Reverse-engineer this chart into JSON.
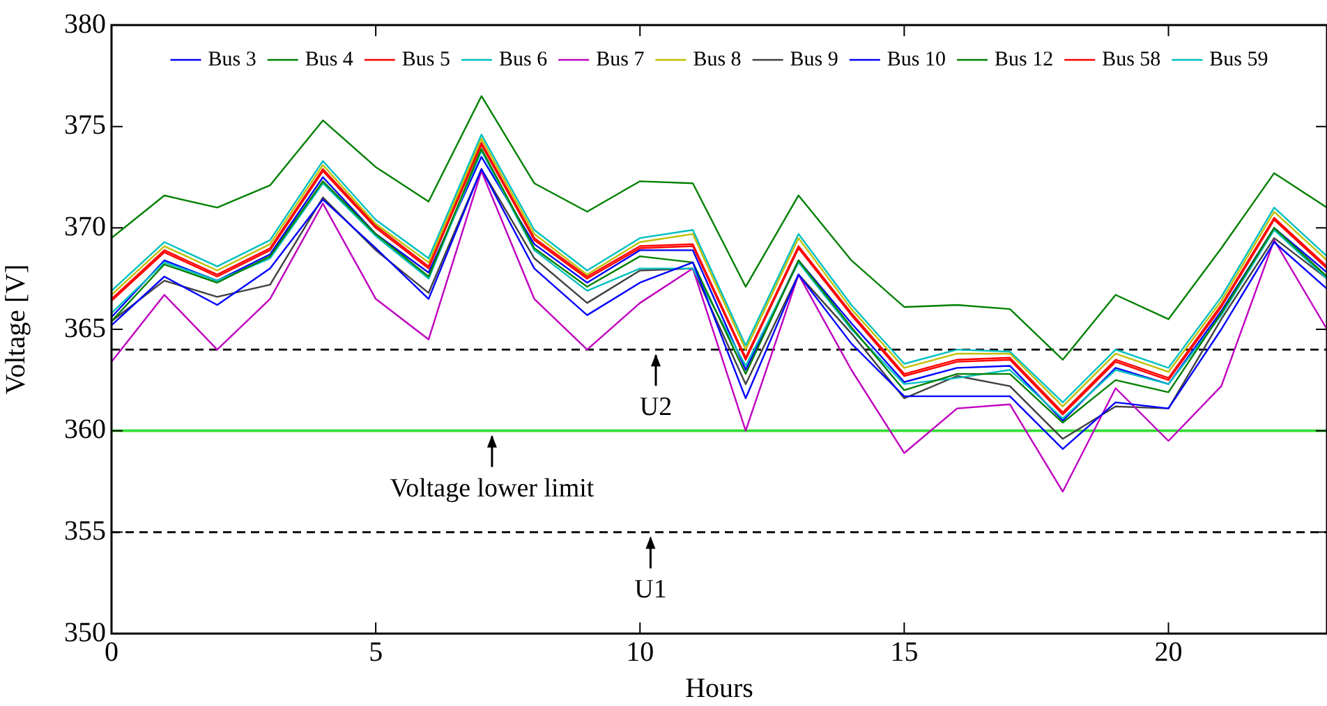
{
  "chart_data": {
    "type": "line",
    "xlabel": "Hours",
    "ylabel": "Voltage [V]",
    "x": [
      0,
      1,
      2,
      3,
      4,
      5,
      6,
      7,
      8,
      9,
      10,
      11,
      12,
      13,
      14,
      15,
      16,
      17,
      18,
      19,
      20,
      21,
      22,
      23
    ],
    "xlim": [
      0,
      23
    ],
    "xticks": [
      0,
      5,
      10,
      15,
      20
    ],
    "ylim": [
      350,
      380
    ],
    "yticks": [
      350,
      355,
      360,
      365,
      370,
      375,
      380
    ],
    "grid": false,
    "legend": "top",
    "marker": "none",
    "line_style": "solid",
    "series": [
      {
        "name": "Bus 3",
        "color": "#0000ff",
        "values": [
          365.2,
          367.6,
          366.2,
          368.0,
          371.4,
          369.0,
          366.5,
          372.9,
          368.0,
          365.7,
          367.3,
          368.3,
          361.6,
          367.7,
          364.3,
          361.7,
          361.7,
          361.7,
          359.1,
          361.4,
          361.1,
          365.0,
          369.3,
          367.0
        ]
      },
      {
        "name": "Bus 4",
        "color": "#008000",
        "values": [
          365.4,
          368.2,
          367.3,
          368.6,
          372.3,
          369.7,
          367.6,
          373.9,
          369.0,
          367.1,
          368.6,
          368.3,
          362.8,
          368.4,
          365.1,
          362.0,
          362.8,
          362.8,
          360.4,
          362.5,
          361.9,
          365.8,
          370.0,
          367.6
        ]
      },
      {
        "name": "Bus 5",
        "color": "#ff0000",
        "values": [
          366.4,
          368.8,
          367.6,
          368.9,
          372.8,
          370.0,
          368.0,
          374.1,
          369.4,
          367.5,
          369.0,
          369.1,
          363.5,
          369.0,
          365.7,
          362.7,
          363.4,
          363.5,
          360.8,
          363.4,
          362.5,
          366.1,
          370.4,
          368.0
        ]
      },
      {
        "name": "Bus 6",
        "color": "#00bfbf",
        "values": [
          365.8,
          368.3,
          367.4,
          368.5,
          372.2,
          369.6,
          367.5,
          373.8,
          368.9,
          366.9,
          368.0,
          368.0,
          363.2,
          368.3,
          365.0,
          362.3,
          362.6,
          363.0,
          360.6,
          363.0,
          362.3,
          365.7,
          369.9,
          367.5
        ]
      },
      {
        "name": "Bus 7",
        "color": "#bf00bf",
        "values": [
          363.4,
          366.7,
          364.0,
          366.5,
          371.2,
          366.5,
          364.5,
          372.8,
          366.5,
          364.0,
          366.3,
          368.0,
          360.0,
          367.7,
          363.0,
          358.9,
          361.1,
          361.3,
          357.0,
          362.1,
          359.5,
          362.2,
          369.4,
          365.0
        ]
      },
      {
        "name": "Bus 8",
        "color": "#bfbf00",
        "values": [
          366.7,
          369.1,
          367.9,
          369.2,
          373.1,
          370.2,
          368.3,
          374.4,
          369.7,
          367.7,
          369.3,
          369.7,
          364.0,
          369.5,
          366.0,
          363.1,
          363.8,
          363.8,
          361.2,
          363.8,
          362.9,
          366.4,
          370.8,
          368.4
        ]
      },
      {
        "name": "Bus 9",
        "color": "#404040",
        "values": [
          365.4,
          367.4,
          366.6,
          367.2,
          371.5,
          368.9,
          366.8,
          372.9,
          368.5,
          366.3,
          367.9,
          368.0,
          362.3,
          367.7,
          364.8,
          361.6,
          362.7,
          362.2,
          359.6,
          361.2,
          361.1,
          365.5,
          369.5,
          367.5
        ]
      },
      {
        "name": "Bus 10",
        "color": "#0000ff",
        "values": [
          365.6,
          368.4,
          367.4,
          368.7,
          372.5,
          369.7,
          367.8,
          373.5,
          369.2,
          367.3,
          368.9,
          368.9,
          363.0,
          368.4,
          365.3,
          362.4,
          363.1,
          363.2,
          360.5,
          363.1,
          362.3,
          365.9,
          370.0,
          367.8
        ]
      },
      {
        "name": "Bus 12",
        "color": "#008000",
        "values": [
          369.5,
          371.6,
          371.0,
          372.1,
          375.3,
          373.0,
          371.3,
          376.5,
          372.2,
          370.8,
          372.3,
          372.2,
          367.1,
          371.6,
          368.4,
          366.1,
          366.2,
          366.0,
          363.5,
          366.7,
          365.5,
          369.0,
          372.7,
          371.0
        ]
      },
      {
        "name": "Bus 58",
        "color": "#ff0000",
        "values": [
          366.5,
          368.9,
          367.7,
          369.0,
          372.9,
          370.1,
          368.1,
          374.2,
          369.5,
          367.6,
          369.1,
          369.2,
          363.6,
          369.1,
          365.8,
          362.8,
          363.5,
          363.6,
          360.9,
          363.5,
          362.6,
          366.2,
          370.5,
          368.1
        ]
      },
      {
        "name": "Bus 59",
        "color": "#00bfbf",
        "values": [
          366.9,
          369.3,
          368.1,
          369.4,
          373.3,
          370.4,
          368.5,
          374.6,
          369.9,
          367.9,
          369.5,
          369.9,
          364.2,
          369.7,
          366.2,
          363.3,
          364.0,
          363.9,
          361.4,
          364.0,
          363.1,
          366.6,
          371.0,
          368.6
        ]
      }
    ],
    "ref_lines": [
      {
        "axis": "y",
        "value": 364,
        "color": "#000000",
        "line_style": "dashed"
      },
      {
        "axis": "y",
        "value": 360,
        "color": "#33dd33",
        "line_style": "solid"
      },
      {
        "axis": "y",
        "value": 355,
        "color": "#000000",
        "line_style": "dashed"
      }
    ],
    "annotations": [
      {
        "text": "U2",
        "x": 10.3,
        "y": 364
      },
      {
        "text": "Voltage lower limit",
        "x": 7.2,
        "y": 360
      },
      {
        "text": "U1",
        "x": 10.2,
        "y": 355
      }
    ]
  }
}
